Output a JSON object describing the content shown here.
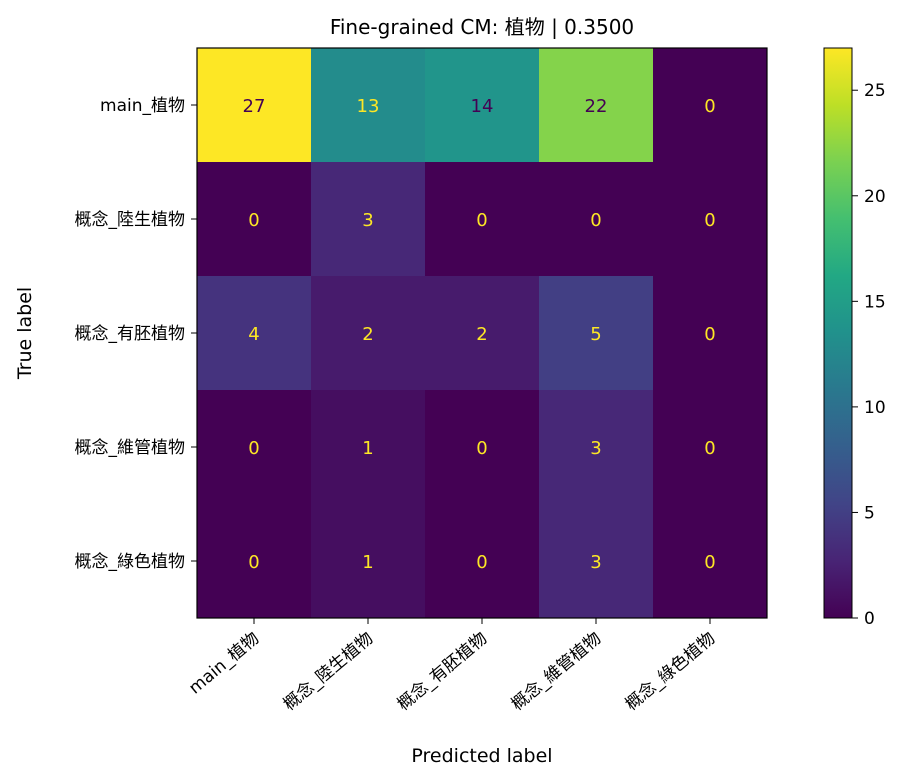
{
  "chart_data": {
    "type": "heatmap",
    "title": "Fine-grained CM: 植物 | 0.3500",
    "xlabel": "Predicted label",
    "ylabel": "True label",
    "x_categories": [
      "main_植物",
      "概念_陸生植物",
      "概念_有胚植物",
      "概念_維管植物",
      "概念_綠色植物"
    ],
    "y_categories": [
      "main_植物",
      "概念_陸生植物",
      "概念_有胚植物",
      "概念_維管植物",
      "概念_綠色植物"
    ],
    "matrix": [
      [
        27,
        13,
        14,
        22,
        0
      ],
      [
        0,
        3,
        0,
        0,
        0
      ],
      [
        4,
        2,
        2,
        5,
        0
      ],
      [
        0,
        1,
        0,
        3,
        0
      ],
      [
        0,
        1,
        0,
        3,
        0
      ]
    ],
    "colormap": "viridis",
    "vmin": 0,
    "vmax": 27,
    "colorbar_ticks": [
      0,
      5,
      10,
      15,
      20,
      25
    ],
    "text_color_dark_cells": "#fde725",
    "text_color_light_cells": "#440154"
  }
}
